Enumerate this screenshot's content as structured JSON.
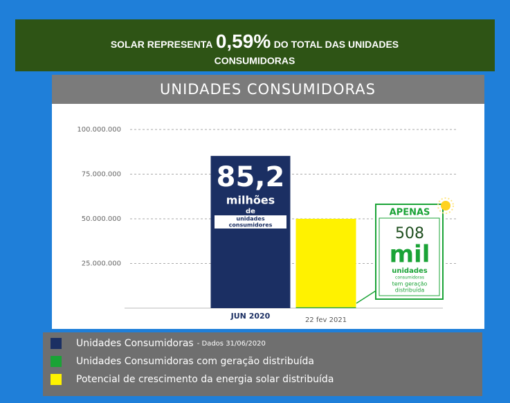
{
  "chart_data": {
    "type": "bar",
    "banner": {
      "lead": "SOLAR REPRESENTA",
      "highlight": "0,59%",
      "tail": "DO TOTAL DAS UNIDADES",
      "line2": "CONSUMIDORAS"
    },
    "title": "UNIDADES CONSUMIDORAS",
    "categories": [
      "JUN 2020",
      "22 fev 2021"
    ],
    "stacked": true,
    "series": [
      {
        "name": "Unidades Consumidoras",
        "legend_note": "- Dados 31/06/2020",
        "color": "#1b2f63",
        "values": [
          85200000,
          null
        ]
      },
      {
        "name": "Unidades Consumidoras com geração distribuída",
        "color": "#1aa336",
        "values": [
          null,
          508000
        ]
      },
      {
        "name": "Potencial de crescimento da energia solar distribuída",
        "color": "#fff200",
        "values": [
          null,
          49500000
        ]
      }
    ],
    "bar_label": {
      "number": "85,2",
      "unit": "milhões",
      "of": "de",
      "desc1": "unidades",
      "desc2": "consumidores"
    },
    "callout": {
      "head": "APENAS",
      "number": "508",
      "unit": "mil",
      "desc1": "unidades",
      "desc2": "consumidoras",
      "desc3": "tem geração",
      "desc4": "distribuída"
    },
    "ylim": [
      0,
      100000000
    ],
    "yticks": [
      {
        "value": 25000000,
        "label": "25.000.000"
      },
      {
        "value": 50000000,
        "label": "50.000.000"
      },
      {
        "value": 75000000,
        "label": "75.000.000"
      },
      {
        "value": 100000000,
        "label": "100.000.000"
      }
    ],
    "grid": true
  }
}
